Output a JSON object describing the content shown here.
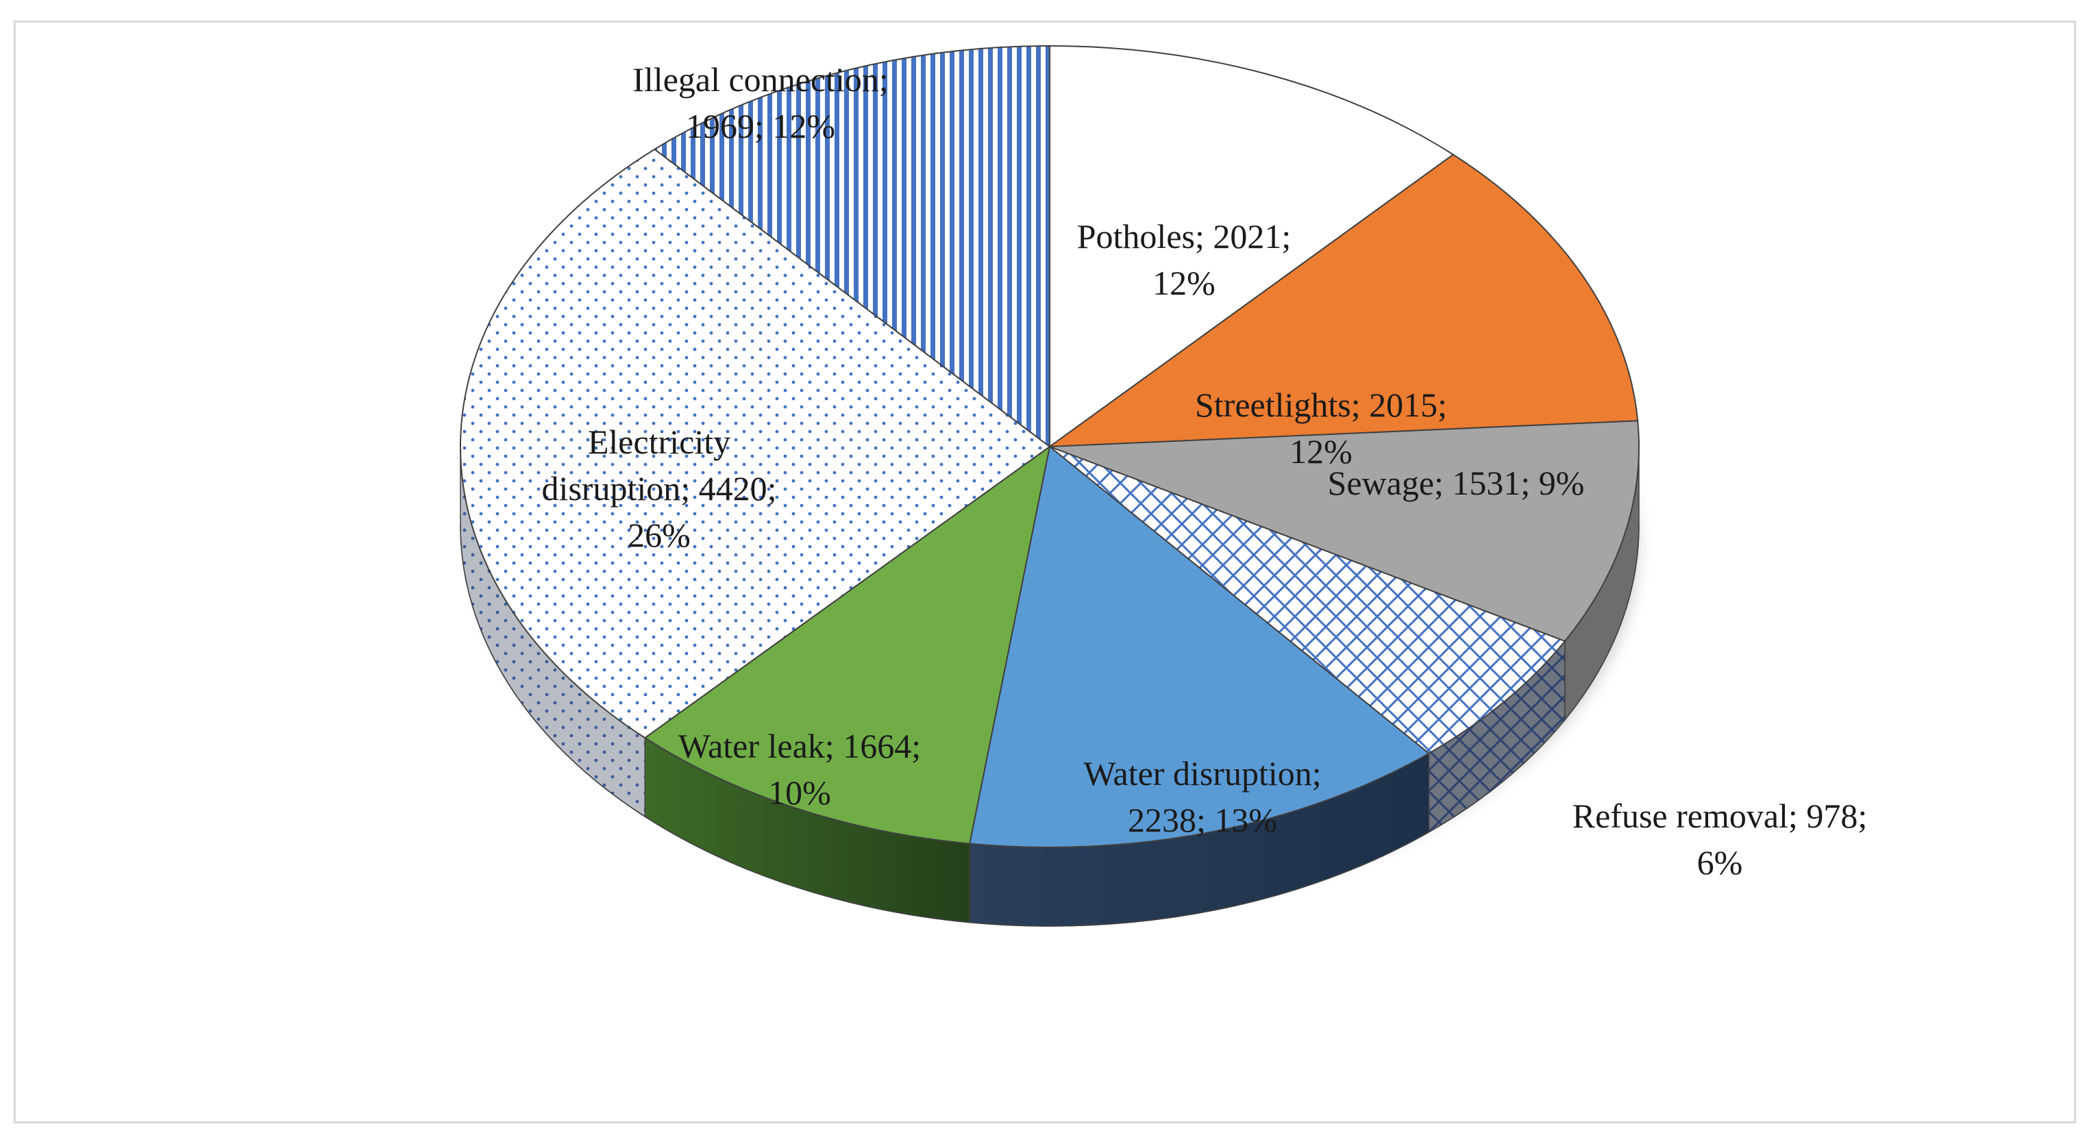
{
  "chart_data": {
    "type": "pie",
    "style": "3d-exploded",
    "title": "",
    "slices": [
      {
        "name": "Potholes",
        "value": 2021,
        "percent": "12%",
        "color": "#ffffff",
        "fill": "plain-white",
        "label_lines": [
          "Potholes; 2021;",
          "12%"
        ]
      },
      {
        "name": "Streetlights",
        "value": 2015,
        "percent": "12%",
        "color": "#ed7d31",
        "fill": "solid",
        "label_lines": [
          "Streetlights; 2015;",
          "12%"
        ]
      },
      {
        "name": "Sewage",
        "value": 1531,
        "percent": "9%",
        "color": "#a5a5a5",
        "fill": "solid",
        "label_lines": [
          "Sewage; 1531; 9%"
        ]
      },
      {
        "name": "Refuse removal",
        "value": 978,
        "percent": "6%",
        "color": "#4472c4",
        "fill": "diagonal-cross-hatch",
        "label_lines": [
          "Refuse removal; 978;",
          "6%"
        ]
      },
      {
        "name": "Water disruption",
        "value": 2238,
        "percent": "13%",
        "color": "#5b9bd5",
        "fill": "solid",
        "label_lines": [
          "Water disruption;",
          "2238; 13%"
        ]
      },
      {
        "name": "Water leak",
        "value": 1664,
        "percent": "10%",
        "color": "#70ad47",
        "fill": "solid",
        "label_lines": [
          "Water leak; 1664;",
          "10%"
        ]
      },
      {
        "name": "Electricity disruption",
        "value": 4420,
        "percent": "26%",
        "color": "#4472c4",
        "fill": "dotted",
        "label_lines": [
          "Electricity",
          "disruption; 4420;",
          "26%"
        ]
      },
      {
        "name": "Illegal connection",
        "value": 1969,
        "percent": "12%",
        "color": "#4472c4",
        "fill": "vertical-stripes",
        "label_lines": [
          "Illegal connection;",
          "1969; 12%"
        ]
      }
    ]
  }
}
